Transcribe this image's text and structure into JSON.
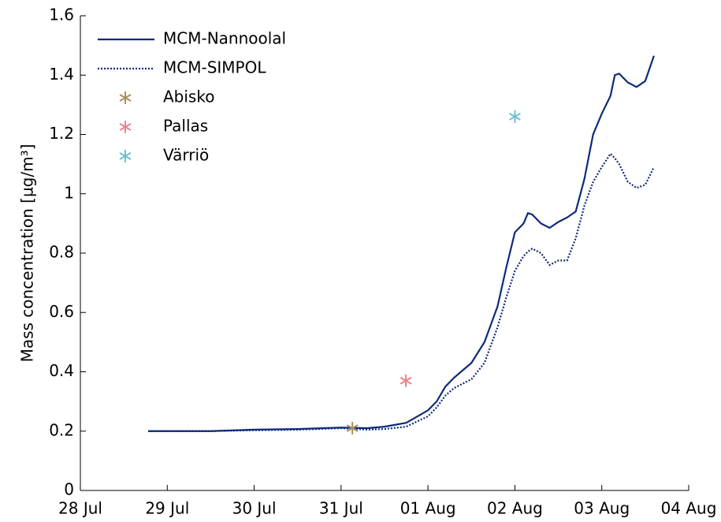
{
  "chart_data": {
    "type": "line",
    "ylabel": "Mass concentration [µg/m³]",
    "x": [
      0.78,
      1.5,
      2.0,
      2.5,
      3.0,
      3.3,
      3.5,
      3.75,
      4.0,
      4.1,
      4.2,
      4.3,
      4.4,
      4.5,
      4.65,
      4.8,
      4.9,
      5.0,
      5.1,
      5.15,
      5.2,
      5.3,
      5.4,
      5.5,
      5.6,
      5.7,
      5.8,
      5.9,
      6.0,
      6.1,
      6.15,
      6.2,
      6.3,
      6.4,
      6.5,
      6.6
    ],
    "series": [
      {
        "name": "MCM-Nannoolal",
        "color": "#0d2a7a",
        "style": "solid",
        "values": [
          0.2,
          0.2,
          0.205,
          0.207,
          0.212,
          0.21,
          0.215,
          0.228,
          0.27,
          0.3,
          0.35,
          0.38,
          0.405,
          0.43,
          0.5,
          0.62,
          0.75,
          0.87,
          0.9,
          0.935,
          0.93,
          0.9,
          0.885,
          0.905,
          0.92,
          0.94,
          1.05,
          1.2,
          1.27,
          1.33,
          1.4,
          1.405,
          1.375,
          1.36,
          1.38,
          1.465
        ]
      },
      {
        "name": "MCM-SIMPOL",
        "color": "#0d2a7a",
        "style": "dotted",
        "values": [
          0.2,
          0.2,
          0.203,
          0.205,
          0.21,
          0.205,
          0.207,
          0.215,
          0.25,
          0.28,
          0.32,
          0.345,
          0.36,
          0.375,
          0.43,
          0.55,
          0.65,
          0.74,
          0.79,
          0.805,
          0.815,
          0.8,
          0.76,
          0.775,
          0.775,
          0.85,
          0.96,
          1.04,
          1.09,
          1.135,
          1.12,
          1.1,
          1.04,
          1.02,
          1.03,
          1.09
        ]
      },
      {
        "name": "Abisko",
        "color": "#a89060",
        "style": "star",
        "x": [
          3.13
        ],
        "values": [
          0.21
        ]
      },
      {
        "name": "Pallas",
        "color": "#f08090",
        "style": "star",
        "x": [
          3.745
        ],
        "values": [
          0.37
        ]
      },
      {
        "name": "Värriö",
        "color": "#70c0d0",
        "style": "star",
        "x": [
          5.0
        ],
        "values": [
          1.26
        ]
      }
    ],
    "xlim": [
      0,
      7
    ],
    "xticks": [
      {
        "value": 0,
        "label": "28 Jul"
      },
      {
        "value": 1,
        "label": "29 Jul"
      },
      {
        "value": 2,
        "label": "30 Jul"
      },
      {
        "value": 3,
        "label": "31 Jul"
      },
      {
        "value": 4,
        "label": "01 Aug"
      },
      {
        "value": 5,
        "label": "02 Aug"
      },
      {
        "value": 6,
        "label": "03 Aug"
      },
      {
        "value": 7,
        "label": "04 Aug"
      }
    ],
    "ylim": [
      0,
      1.6
    ],
    "yticks": [
      0,
      0.2,
      0.4,
      0.6,
      0.8,
      1,
      1.2,
      1.4,
      1.6
    ],
    "grid": false,
    "legend": "top-left"
  }
}
